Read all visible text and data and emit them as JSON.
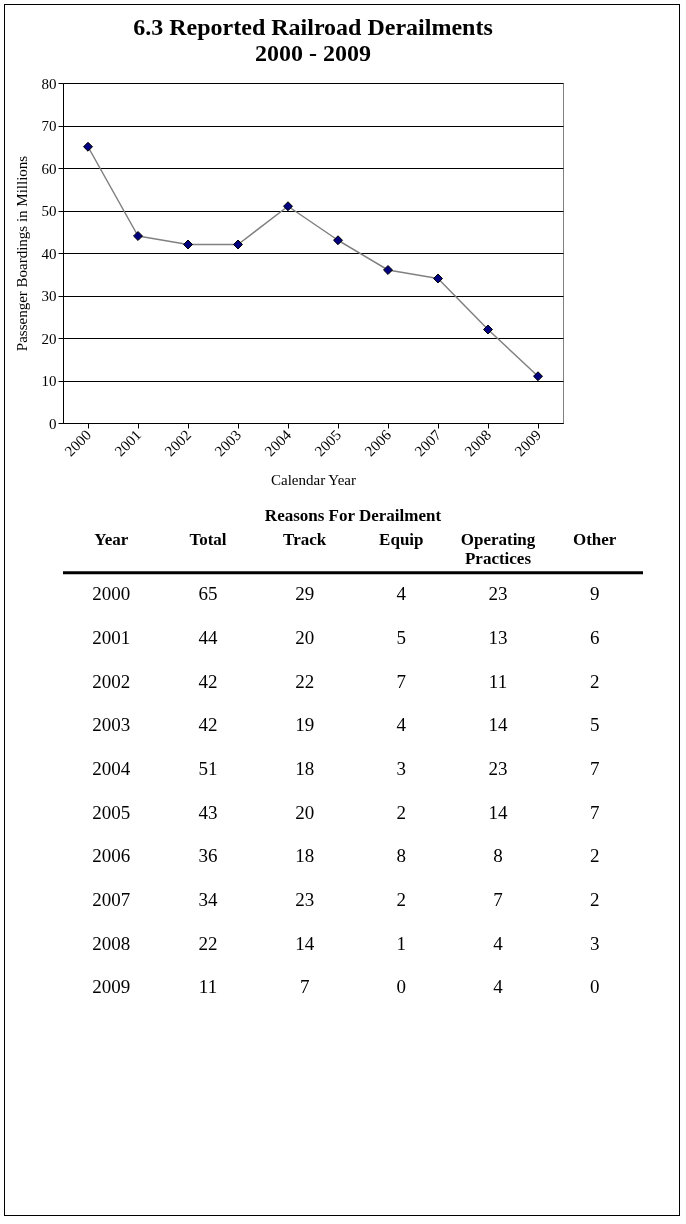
{
  "chart_data": [
    {
      "type": "line",
      "title": "6.3 Reported Railroad Derailments\n2000 - 2009",
      "xlabel": "Calendar Year",
      "ylabel": "Passenger Boardings in Millions",
      "categories": [
        "2000",
        "2001",
        "2002",
        "2003",
        "2004",
        "2005",
        "2006",
        "2007",
        "2008",
        "2009"
      ],
      "series": [
        {
          "color": "#808080",
          "values": [
            65,
            44,
            42,
            42,
            51,
            43,
            36,
            34,
            22,
            11
          ]
        }
      ],
      "ylim": [
        0,
        80
      ],
      "yticks": [
        0,
        10,
        20,
        30,
        40,
        50,
        60,
        70,
        80
      ],
      "grid": "y",
      "marker": "diamond",
      "legend": false
    },
    {
      "type": "heatmap",
      "title": "Reasons For Derailment",
      "ylabel": "Year",
      "data_labels": true,
      "categories": [
        "Total",
        "Track",
        "Equip",
        "Operating Practices",
        "Other"
      ],
      "y_categories": [
        "2000",
        "2001",
        "2002",
        "2003",
        "2004",
        "2005",
        "2006",
        "2007",
        "2008",
        "2009"
      ],
      "cells": [
        [
          65,
          29,
          4,
          23,
          9
        ],
        [
          44,
          20,
          5,
          13,
          6
        ],
        [
          42,
          22,
          7,
          11,
          2
        ],
        [
          42,
          19,
          4,
          14,
          5
        ],
        [
          51,
          18,
          3,
          23,
          7
        ],
        [
          43,
          20,
          2,
          14,
          7
        ],
        [
          36,
          18,
          8,
          8,
          2
        ],
        [
          34,
          23,
          2,
          7,
          2
        ],
        [
          22,
          14,
          1,
          4,
          3
        ],
        [
          11,
          7,
          0,
          4,
          0
        ]
      ]
    }
  ]
}
